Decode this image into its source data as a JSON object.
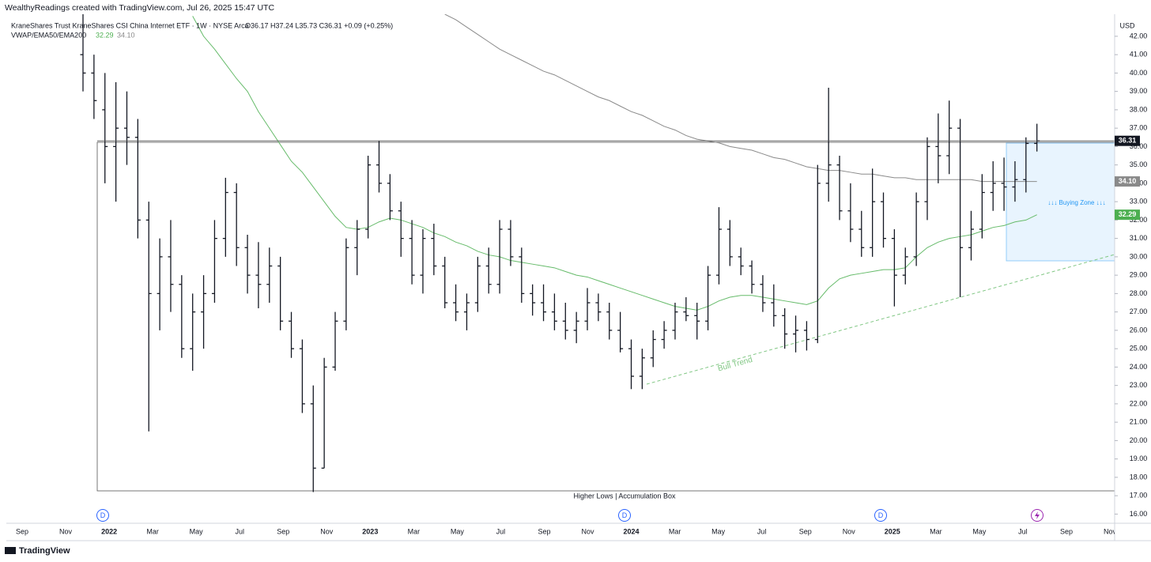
{
  "header": {
    "attribution": "WealthyReadings created with TradingView.com, Jul 26, 2025 15:47 UTC",
    "symbol": "KraneShares Trust KraneShares CSI China Internet ETF · 1W · NYSE Arca",
    "ohlc": "O36.17 H37.24 L35.73 C36.31 +0.09 (+0.25%)",
    "indicator": "VWAP/EMA50/EMA200",
    "indicator_values": [
      "32.29",
      "34.10"
    ]
  },
  "chart_data": {
    "type": "ohlc",
    "currency": "USD",
    "color": "#131722",
    "open": [
      41,
      40,
      38,
      36,
      37,
      36.5,
      32,
      28,
      30,
      28.5,
      25,
      27,
      28,
      31,
      33.5,
      30.5,
      29,
      28.5,
      29.5,
      26.5,
      25,
      22,
      18.5,
      24,
      26.5,
      30.5,
      31.5,
      35,
      34,
      32.5,
      31,
      29,
      31,
      29.5,
      27.5,
      27,
      27.5,
      29.5,
      28.5,
      31.5,
      30,
      28,
      27.5,
      27,
      26.5,
      26,
      26.5,
      27.5,
      27,
      26,
      25,
      23.5,
      24.5,
      25.5,
      26,
      27,
      26.8,
      26.5,
      29,
      31.5,
      30,
      29.5,
      28.5,
      27.5,
      26.8,
      25.8,
      26,
      25.5,
      34,
      35,
      32.5,
      31.5,
      30.5,
      33,
      31,
      29,
      30,
      33,
      36,
      35.5,
      37,
      30.5,
      31.5,
      33.5,
      34,
      33.8,
      34.2,
      36.17
    ],
    "high": [
      43.5,
      41,
      40,
      39.5,
      39,
      37.5,
      33,
      31,
      32,
      29,
      28,
      29,
      32,
      34.3,
      34,
      31.2,
      30.8,
      30.5,
      30,
      27,
      25.5,
      23,
      24.5,
      27,
      31,
      32,
      35.5,
      36.3,
      34.5,
      33,
      32,
      31.5,
      31.8,
      30,
      28.5,
      28,
      30,
      30.5,
      32,
      32,
      30.5,
      28.5,
      28.5,
      28,
      27.5,
      27,
      28.3,
      28,
      27.5,
      27,
      25.5,
      25,
      26,
      26.5,
      27.5,
      27.8,
      27.5,
      29.5,
      32.7,
      32,
      30.5,
      29.8,
      29,
      28.5,
      27.2,
      26.8,
      26.5,
      35,
      39.2,
      35.5,
      34,
      32.5,
      34.8,
      33.5,
      31.5,
      30.5,
      33.5,
      36.5,
      37.8,
      38.5,
      37.5,
      32.5,
      34.5,
      35.2,
      35.4,
      35.2,
      36.5,
      37.24
    ],
    "low": [
      39,
      37.5,
      34,
      33,
      35,
      31,
      20.5,
      26,
      27,
      24.5,
      23.8,
      25,
      27.5,
      30,
      29.5,
      28,
      27.2,
      27.5,
      26,
      24.5,
      21.5,
      17.2,
      18.5,
      23.8,
      26,
      29,
      31,
      33.5,
      32,
      30,
      28.5,
      28,
      29,
      27.2,
      26.5,
      26,
      27,
      28,
      28,
      29.5,
      27.5,
      26.8,
      26.5,
      26,
      25.5,
      25.3,
      26,
      26.5,
      25.5,
      24.8,
      22.8,
      22.8,
      24,
      25,
      25.5,
      26.5,
      25.5,
      26,
      28.5,
      29.5,
      29,
      28,
      27,
      26.2,
      25,
      24.8,
      24.9,
      25.3,
      33,
      32,
      30.8,
      30,
      30,
      30.5,
      27.3,
      28.5,
      29.5,
      32,
      34,
      34.5,
      27.8,
      29.8,
      31,
      32.5,
      32.5,
      33,
      33.5,
      35.73
    ],
    "close": [
      40,
      38.5,
      36,
      37,
      36.5,
      32,
      28,
      30,
      28.5,
      25,
      27,
      28,
      31,
      33.5,
      30.5,
      29,
      28.5,
      29.5,
      26.5,
      25,
      22,
      18.5,
      24,
      26.5,
      30.5,
      31.5,
      35,
      34,
      32.5,
      31,
      29,
      31,
      29.5,
      27.5,
      27,
      27.5,
      29.5,
      28.5,
      31.5,
      30,
      28,
      27.5,
      27,
      26.5,
      26,
      26.5,
      27.5,
      27,
      26,
      25,
      23.5,
      24.5,
      25.5,
      26,
      27,
      26.8,
      26.5,
      29,
      31.5,
      30,
      29.5,
      28.5,
      27.5,
      26.8,
      25.8,
      26,
      25.5,
      34,
      35,
      32.5,
      31.5,
      30.5,
      33,
      31,
      29,
      30,
      33,
      36,
      35.5,
      37,
      30.5,
      31.5,
      33.5,
      34,
      33.8,
      34.2,
      36.17,
      36.31
    ],
    "series": [
      {
        "color": "#66bb6a",
        "values": [
          null,
          null,
          null,
          null,
          null,
          null,
          null,
          null,
          null,
          null,
          43.1,
          42.0,
          41.3,
          40.5,
          39.7,
          39.0,
          37.9,
          37.0,
          36.1,
          35.2,
          34.6,
          33.8,
          33.0,
          32.2,
          31.6,
          31.5,
          31.6,
          31.9,
          32.1,
          32.0,
          31.8,
          31.6,
          31.3,
          31.1,
          30.8,
          30.6,
          30.3,
          30.1,
          30.0,
          29.8,
          29.7,
          29.6,
          29.5,
          29.4,
          29.2,
          29.0,
          28.9,
          28.7,
          28.5,
          28.3,
          28.1,
          27.9,
          27.7,
          27.5,
          27.3,
          27.2,
          27.1,
          27.3,
          27.6,
          27.8,
          27.9,
          27.9,
          27.8,
          27.7,
          27.6,
          27.5,
          27.4,
          27.6,
          28.3,
          28.8,
          29.0,
          29.1,
          29.2,
          29.3,
          29.3,
          29.4,
          30.0,
          30.5,
          30.8,
          31.0,
          31.1,
          31.2,
          31.4,
          31.6,
          31.7,
          31.9,
          32.0,
          32.29
        ]
      },
      {
        "color": "#8a8a8a",
        "values": [
          null,
          null,
          null,
          null,
          null,
          null,
          null,
          null,
          null,
          null,
          null,
          null,
          null,
          null,
          null,
          null,
          null,
          null,
          null,
          null,
          null,
          null,
          null,
          null,
          null,
          null,
          null,
          null,
          null,
          null,
          null,
          null,
          null,
          43.2,
          42.9,
          42.5,
          42.1,
          41.7,
          41.3,
          41.0,
          40.7,
          40.4,
          40.1,
          39.9,
          39.6,
          39.3,
          39.0,
          38.7,
          38.5,
          38.2,
          37.9,
          37.7,
          37.4,
          37.1,
          36.9,
          36.6,
          36.4,
          36.3,
          36.2,
          36.0,
          35.9,
          35.8,
          35.6,
          35.4,
          35.3,
          35.1,
          34.9,
          34.8,
          34.7,
          34.7,
          34.6,
          34.5,
          34.5,
          34.4,
          34.3,
          34.3,
          34.2,
          34.2,
          34.2,
          34.2,
          34.2,
          34.2,
          34.1,
          34.1,
          34.1,
          34.1,
          34.1,
          34.1
        ]
      }
    ],
    "ylim": [
      15.5,
      43.2
    ],
    "yticks": [
      {
        "value": 16,
        "label": "16.00"
      },
      {
        "value": 17,
        "label": "17.00"
      },
      {
        "value": 18,
        "label": "18.00"
      },
      {
        "value": 19,
        "label": "19.00"
      },
      {
        "value": 20,
        "label": "20.00"
      },
      {
        "value": 21,
        "label": "21.00"
      },
      {
        "value": 22,
        "label": "22.00"
      },
      {
        "value": 23,
        "label": "23.00"
      },
      {
        "value": 24,
        "label": "24.00"
      },
      {
        "value": 25,
        "label": "25.00"
      },
      {
        "value": 26,
        "label": "26.00"
      },
      {
        "value": 27,
        "label": "27.00"
      },
      {
        "value": 28,
        "label": "28.00"
      },
      {
        "value": 29,
        "label": "29.00"
      },
      {
        "value": 30,
        "label": "30.00"
      },
      {
        "value": 31,
        "label": "31.00"
      },
      {
        "value": 32,
        "label": "32.00"
      },
      {
        "value": 33,
        "label": "33.00"
      },
      {
        "value": 34,
        "label": "34.00"
      },
      {
        "value": 35,
        "label": "35.00"
      },
      {
        "value": 36,
        "label": "36.00"
      },
      {
        "value": 37,
        "label": "37.00"
      },
      {
        "value": 38,
        "label": "38.00"
      },
      {
        "value": 39,
        "label": "39.00"
      },
      {
        "value": 40,
        "label": "40.00"
      },
      {
        "value": 41,
        "label": "41.00"
      },
      {
        "value": 42,
        "label": "42.00"
      }
    ],
    "xticks": [
      "Sep",
      "Nov",
      "2022",
      "Mar",
      "May",
      "Jul",
      "Sep",
      "Nov",
      "2023",
      "Mar",
      "May",
      "Jul",
      "Sep",
      "Nov",
      "2024",
      "Mar",
      "May",
      "Jul",
      "Sep",
      "Nov",
      "2025",
      "Mar",
      "May",
      "Jul",
      "Sep",
      "Nov"
    ],
    "price_tags": [
      {
        "value": 36.31,
        "label": "36.31",
        "color": "#131722"
      },
      {
        "value": 34.1,
        "label": "34.10",
        "color": "#8a8a8a"
      },
      {
        "value": 32.29,
        "label": "32.29",
        "color": "#4caf50"
      }
    ],
    "annotations": {
      "box": "Higher Lows | Accumulation Box",
      "zone": "↓↓↓ Buying Zone ↓↓↓",
      "trend": "Bull Trend"
    },
    "events": [
      "D",
      "D",
      "D"
    ]
  },
  "footer": {
    "brand": "TradingView"
  }
}
